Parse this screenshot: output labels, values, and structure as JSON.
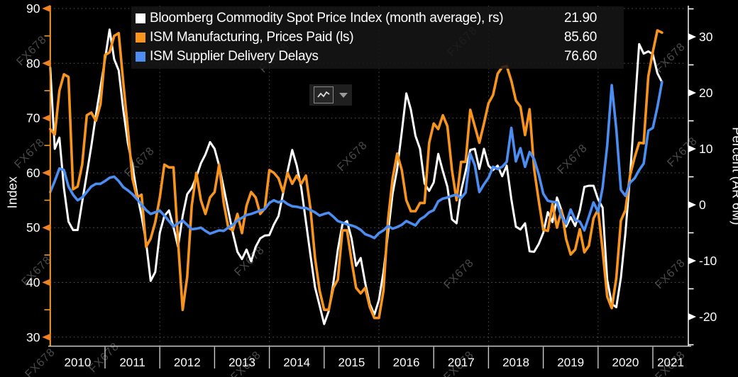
{
  "background": "#000000",
  "watermark": {
    "text": "FX678",
    "color": "#9c9c9c"
  },
  "legend": {
    "items": [
      {
        "label": "Bloomberg Commodity Spot Price Index (month average), rs)",
        "value": "21.90",
        "color": "#ffffff"
      },
      {
        "label": "ISM Manufacturing, Prices Paid (ls)",
        "value": "85.60",
        "color": "#f7941e"
      },
      {
        "label": "ISM Supplier Delivery Delays",
        "value": "76.60",
        "color": "#4b8df0"
      }
    ]
  },
  "toolbar": {
    "chart_type_button": "line-chart",
    "dropdown": "chart-type-options"
  },
  "chart_data": {
    "type": "line",
    "start_month": "2010-01",
    "end_month": "2021-03",
    "x_years": [
      "2010",
      "2011",
      "2012",
      "2013",
      "2014",
      "2015",
      "2016",
      "2017",
      "2018",
      "2019",
      "2020",
      "2021"
    ],
    "grid": {
      "horizontal_at_left_ticks": true,
      "vertical_at_years": [
        2012,
        2014,
        2016,
        2018,
        2020
      ]
    },
    "left_axis": {
      "label": "Index",
      "min": 30,
      "max": 90,
      "ticks": [
        90,
        80,
        70,
        60,
        50,
        40,
        30
      ],
      "minor_ticks": [
        85,
        75,
        65,
        55,
        45,
        35
      ],
      "line_color": "#f79a26",
      "arrow_color": "#f28122"
    },
    "right_axis": {
      "label": "Percent (AR 6M)",
      "min": -25,
      "max": 35,
      "ticks": [
        30,
        20,
        10,
        0,
        -10,
        -20
      ],
      "minor_ticks": [
        35,
        25,
        15,
        5,
        -5,
        -15,
        -25
      ],
      "line_color": "#e8e8e8",
      "arrow_color": "#ffffff"
    },
    "series": [
      {
        "name": "Bloomberg Commodity Spot Price Index (month average), rs)",
        "axis": "right",
        "color": "#ffffff",
        "width": 3,
        "values": [
          24.5,
          10,
          12,
          3,
          -3,
          -4.5,
          -4.5,
          0.5,
          5.5,
          10.5,
          16,
          21,
          26,
          31.3,
          26,
          24,
          17,
          11,
          7,
          2,
          -2,
          -6.7,
          -13.6,
          -12,
          -5,
          -2,
          -1,
          -4,
          -7.5,
          -2,
          1.9,
          3,
          5,
          7.4,
          9,
          11.2,
          10,
          7,
          3,
          -1,
          -5,
          -8.4,
          -9.7,
          -8,
          -10.1,
          -7.5,
          -6,
          -5.5,
          -5.4,
          -3.5,
          -2,
          2,
          6,
          9.8,
          7,
          3,
          -3,
          -9,
          -14.7,
          -18,
          -21.3,
          -19,
          -14,
          -8,
          -3.5,
          -2.9,
          -6,
          -10.9,
          -9.5,
          -14,
          -17.7,
          -19.6,
          -17,
          -12,
          -5,
          2,
          6.4,
          13,
          19.9,
          17,
          12.3,
          10,
          3.8,
          2.5,
          4,
          9.1,
          6,
          3.2,
          -2.6,
          -3.3,
          2.5,
          6,
          9.8,
          10,
          6.4,
          10,
          7,
          6.2,
          7,
          5.1,
          7,
          1,
          -3.9,
          -4.4,
          -3.3,
          -8.3,
          -8.4,
          -7,
          -5,
          -1.3,
          -3.1,
          1.3,
          -1,
          -3.9,
          -2.2,
          -3.8,
          -1,
          3.2,
          3.4,
          3.4,
          1,
          -0.5,
          -13.4,
          -17.7,
          -18.3,
          -13,
          -5,
          5,
          17,
          28.7,
          27,
          27.4,
          26.9,
          23.5,
          21.9
        ]
      },
      {
        "name": "ISM Manufacturing, Prices Paid (ls)",
        "axis": "left",
        "color": "#f7941e",
        "width": 3.6,
        "values": [
          68,
          67,
          75,
          78,
          77.5,
          57,
          57.5,
          61.5,
          70.5,
          71,
          69.5,
          72.5,
          81.5,
          82,
          85,
          85.5,
          76.5,
          68,
          59,
          55.5,
          56,
          46.5,
          48,
          51,
          55.5,
          61.5,
          61,
          61,
          47.5,
          35,
          41,
          54,
          60,
          55,
          52.5,
          55.5,
          56.5,
          61.5,
          54.5,
          50,
          49.5,
          52.5,
          49,
          54,
          56.5,
          55.5,
          52.5,
          53.5,
          60.5,
          60,
          59,
          56.5,
          60,
          58,
          59.5,
          58,
          59.5,
          53.5,
          44.5,
          38.5,
          35,
          35,
          39,
          40.5,
          49.5,
          49.5,
          44,
          39,
          38,
          39,
          35.5,
          33.5,
          33.5,
          38.5,
          51.5,
          59,
          63.5,
          60.5,
          55,
          53,
          53,
          54.5,
          54.5,
          65.5,
          69,
          68,
          70.5,
          68.5,
          60.5,
          55,
          62,
          62,
          71.5,
          68.5,
          65.5,
          69,
          72.7,
          74.2,
          78.1,
          79.3,
          79.5,
          76.8,
          73.2,
          72.1,
          66.9,
          71.6,
          60.7,
          54.9,
          49.6,
          49.4,
          54.3,
          50,
          53.2,
          47.9,
          45.1,
          46,
          49.7,
          45.5,
          46.7,
          51.7,
          53.3,
          45.9,
          37.4,
          35.3,
          40.8,
          51.3,
          53.2,
          59.5,
          62.8,
          65.5,
          65.4,
          77.6,
          82.1,
          86,
          85.6
        ]
      },
      {
        "name": "ISM Supplier Delivery Delays",
        "axis": "left",
        "color": "#4b8df0",
        "width": 3.6,
        "values": [
          56.5,
          58.5,
          60.8,
          60.5,
          57.5,
          56,
          55,
          55.5,
          56.5,
          57.5,
          58,
          58,
          58.5,
          59.1,
          59.3,
          58.5,
          57.4,
          56.8,
          56.1,
          55.2,
          54.2,
          53.2,
          52.5,
          52.8,
          53.1,
          52.2,
          51.2,
          50.2,
          50.8,
          51.3,
          50.5,
          49.7,
          49.8,
          50,
          49.4,
          48.9,
          49.2,
          49.5,
          49.4,
          50,
          50.5,
          51.3,
          51.8,
          52.3,
          52.5,
          52.8,
          53.1,
          53.4,
          54.5,
          55,
          54.6,
          54.9,
          54.3,
          53.9,
          53.8,
          53.6,
          53.6,
          53.2,
          52.8,
          52.2,
          52.5,
          52.7,
          52,
          51.2,
          50.9,
          50.6,
          50.4,
          50.1,
          49.6,
          48.8,
          48.5,
          48.1,
          49,
          49.5,
          50.3,
          49.8,
          50.1,
          50.5,
          51.2,
          50.8,
          50.4,
          51.5,
          52,
          52.8,
          53.2,
          54.8,
          55.3,
          55.5,
          55.8,
          56,
          55.4,
          56.4,
          63.5,
          61.4,
          56.5,
          57.9,
          59.1,
          61.1,
          60.7,
          61.1,
          62,
          68.2,
          62.1,
          64.5,
          61.1,
          63.8,
          62.5,
          59.7,
          56.2,
          54.9,
          54.7,
          54.6,
          52,
          50.7,
          53.3,
          51.4,
          51.1,
          49.5,
          52,
          54.6,
          52.9,
          57.3,
          65,
          76,
          68,
          56.9,
          55.8,
          58.2,
          59,
          60.5,
          61.7,
          67.7,
          68.2,
          72,
          76.6
        ]
      }
    ]
  }
}
